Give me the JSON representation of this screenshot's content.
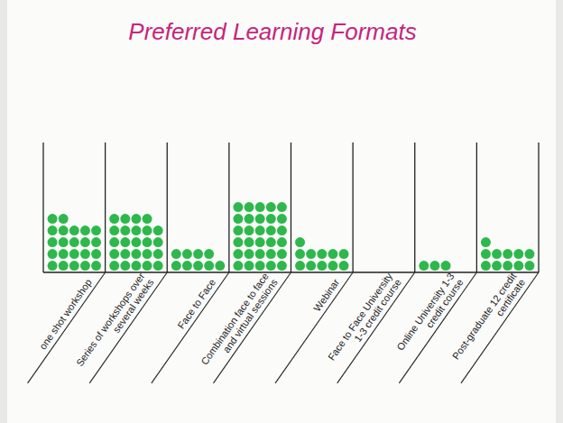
{
  "chart_data": {
    "type": "dot",
    "title": "Preferred Learning Formats",
    "categories": [
      "one shot workshop",
      "Series of workshops over several weeks",
      "Face to Face",
      "Combination face to face and virtual sessions",
      "Webinar",
      "Face to Face University 1-3 credit course",
      "Online University 1-3 credit course",
      "Post-graduate 12 credit certificate"
    ],
    "values": [
      22,
      24,
      9,
      30,
      11,
      0,
      3,
      11
    ],
    "color": "#2eb84c",
    "tick_labels": false
  }
}
